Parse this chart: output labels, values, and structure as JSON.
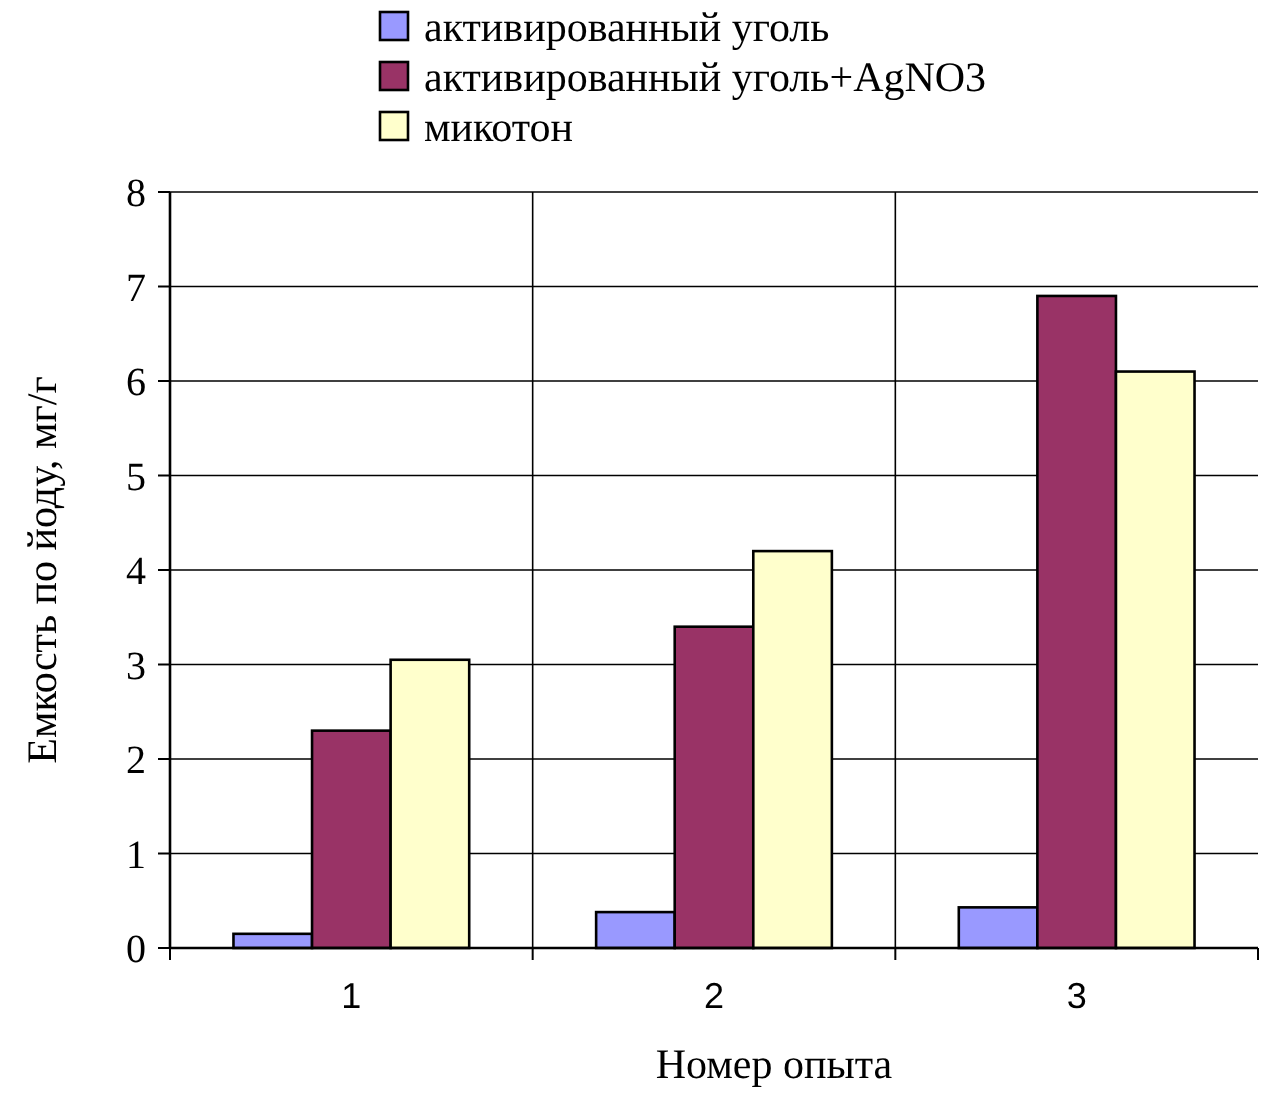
{
  "chart_data": {
    "type": "bar",
    "xlabel": "Номер опыта",
    "ylabel": "Емкость по йоду, мг/г",
    "categories": [
      "1",
      "2",
      "3"
    ],
    "series": [
      {
        "name": "активированный уголь",
        "color": "#9999ff",
        "values": [
          0.15,
          0.38,
          0.43
        ]
      },
      {
        "name": "активированный уголь+AgNO3",
        "color": "#993366",
        "values": [
          2.3,
          3.4,
          6.9
        ]
      },
      {
        "name": "микотон",
        "color": "#ffffcc",
        "values": [
          3.05,
          4.2,
          6.1
        ]
      }
    ],
    "ylim": [
      0,
      8
    ],
    "yticks": [
      0,
      1,
      2,
      3,
      4,
      5,
      6,
      7,
      8
    ],
    "grid": true,
    "legend": "top"
  }
}
